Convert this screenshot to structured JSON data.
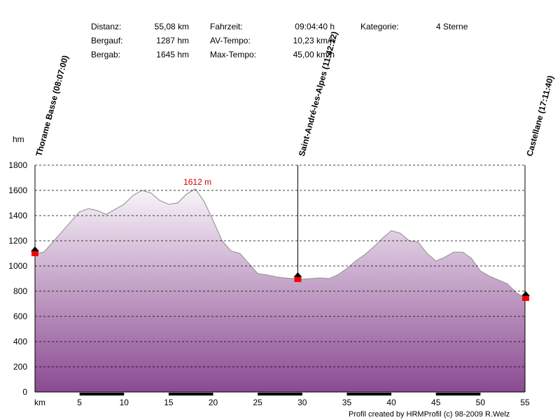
{
  "stats": {
    "distance_label": "Distanz:",
    "distance_value": "55,08 km",
    "ascent_label": "Bergauf:",
    "ascent_value": "1287 hm",
    "descent_label": "Bergab:",
    "descent_value": "1645 hm",
    "time_label": "Fahrzeit:",
    "time_value": "09:04:40 h",
    "avg_label": "AV-Tempo:",
    "avg_value": "10,23 km/h",
    "max_label": "Max-Tempo:",
    "max_value": "45,00 km/h",
    "category_label": "Kategorie:",
    "category_value": "4 Sterne"
  },
  "credit": "Profil created by HRMProfil (c) 98-2009 R.Welz",
  "colors": {
    "fill_top": "#f8f4f9",
    "fill_bottom": "#8a4a92",
    "outline": "#9a9a9a",
    "peak_label": "#d40000",
    "waypoint_marker": "#ff0000",
    "grid": "#000000"
  },
  "chart_data": {
    "type": "area",
    "xlabel": "km",
    "ylabel": "hm",
    "xlim": [
      0,
      55
    ],
    "ylim": [
      0,
      1800
    ],
    "xticks": [
      5,
      10,
      15,
      20,
      25,
      30,
      35,
      40,
      45,
      50,
      55
    ],
    "yticks": [
      0,
      200,
      400,
      600,
      800,
      1000,
      1200,
      1400,
      1600,
      1800
    ],
    "grid": true,
    "peak": {
      "x": 18.0,
      "y": 1612,
      "label": "1612 m"
    },
    "waypoints": [
      {
        "x": 0,
        "y": 1100,
        "label": "Thorame Basse (08:07:00)"
      },
      {
        "x": 29.5,
        "y": 895,
        "label": "Saint-André-les-Alpes (11:42:12)"
      },
      {
        "x": 55.08,
        "y": 745,
        "label": "Castellane (17:11:40)"
      }
    ],
    "profile": {
      "x": [
        0,
        1,
        2,
        3,
        4,
        5,
        6,
        7,
        8,
        9,
        10,
        11,
        12,
        13,
        14,
        15,
        16,
        17,
        18,
        19,
        20,
        21,
        22,
        23,
        24,
        25,
        26,
        27,
        28,
        29,
        30,
        31,
        32,
        33,
        34,
        35,
        36,
        37,
        38,
        39,
        40,
        41,
        42,
        43,
        44,
        45,
        46,
        47,
        48,
        49,
        50,
        51,
        52,
        53,
        54,
        55
      ],
      "y": [
        1100,
        1110,
        1190,
        1270,
        1350,
        1430,
        1455,
        1440,
        1410,
        1450,
        1490,
        1560,
        1600,
        1580,
        1520,
        1490,
        1500,
        1570,
        1612,
        1510,
        1360,
        1200,
        1120,
        1100,
        1020,
        940,
        930,
        915,
        905,
        900,
        895,
        900,
        905,
        900,
        930,
        980,
        1040,
        1090,
        1150,
        1220,
        1280,
        1260,
        1200,
        1190,
        1100,
        1040,
        1070,
        1110,
        1110,
        1060,
        960,
        920,
        890,
        860,
        790,
        745
      ]
    }
  }
}
